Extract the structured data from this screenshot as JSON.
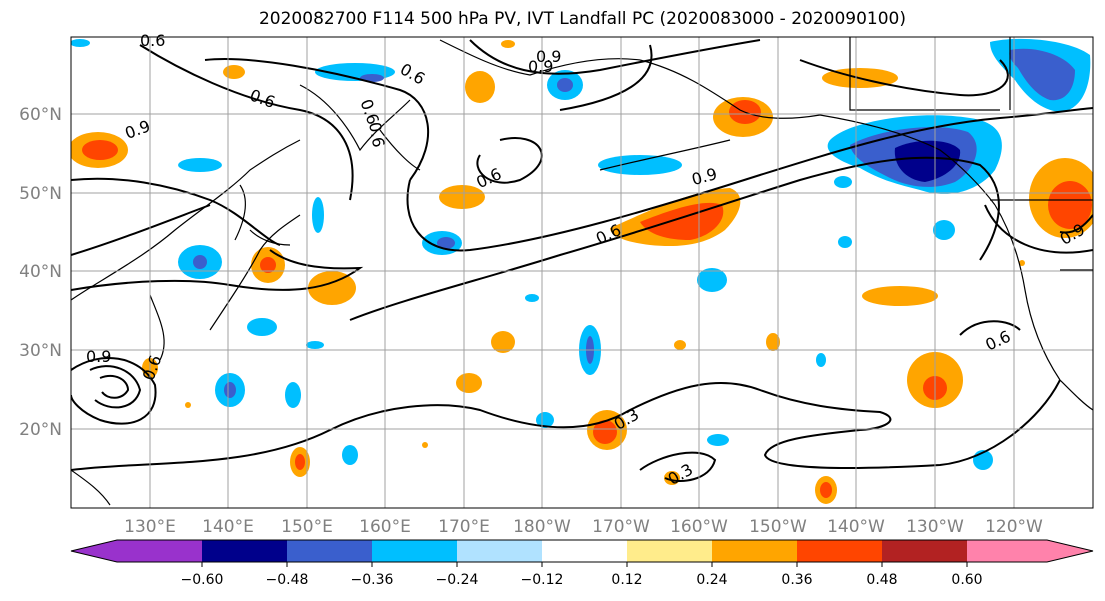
{
  "title": "2020082700 F114 500 hPa PV, IVT Landfall PC (2020083000 - 2020090100)",
  "lon_labels": [
    "130°E",
    "140°E",
    "150°E",
    "160°E",
    "170°E",
    "180°W",
    "170°W",
    "160°W",
    "150°W",
    "140°W",
    "130°W",
    "120°W"
  ],
  "lat_labels": [
    "60°N",
    "50°N",
    "40°N",
    "30°N",
    "20°N"
  ],
  "colorbar": {
    "ticks": [
      "−0.60",
      "−0.48",
      "−0.36",
      "−0.24",
      "−0.12",
      "0.12",
      "0.24",
      "0.36",
      "0.48",
      "0.60"
    ],
    "colors": [
      "#9932cc",
      "#00008b",
      "#3a5fcd",
      "#00bfff",
      "#b0e2ff",
      "#ffffff",
      "#ffec8b",
      "#ffa500",
      "#ff4500",
      "#b22222",
      "#ff82ab"
    ]
  },
  "contour_labels": [
    "0.6",
    "0.6",
    "0.6",
    "0.9",
    "0.9",
    "0.6",
    "0.9",
    "0.6",
    "0.6",
    "0.9",
    "0.3",
    "0.3",
    "0.9",
    "0.6",
    "0.9",
    "0.6",
    "0.6"
  ]
}
